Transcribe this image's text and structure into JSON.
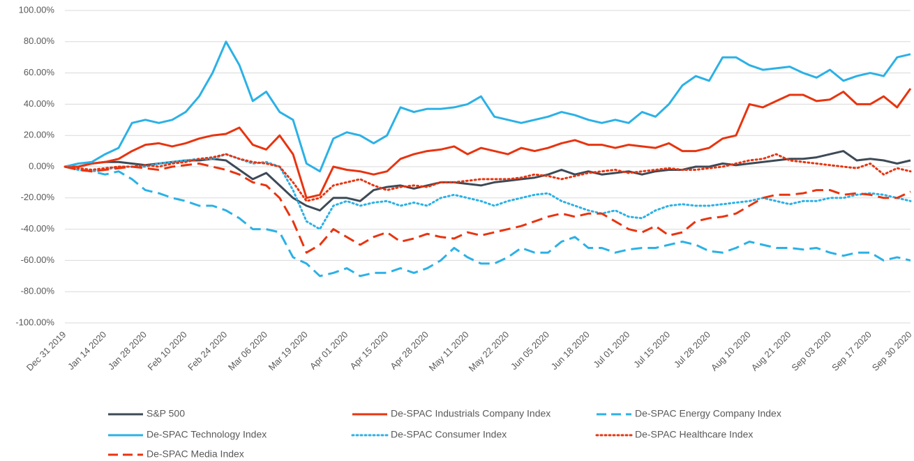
{
  "chart_data": {
    "type": "line",
    "categories": [
      "Dec 31 2019",
      null,
      null,
      "Jan 14 2020",
      null,
      null,
      "Jan 28 2020",
      null,
      null,
      "Feb 10 2020",
      null,
      null,
      "Feb 24 2020",
      null,
      null,
      "Mar 06 2020",
      null,
      null,
      "Mar 19 2020",
      null,
      null,
      "Apr 01 2020",
      null,
      null,
      "Apr 15 2020",
      null,
      null,
      "Apr 28 2020",
      null,
      null,
      "May 11 2020",
      null,
      null,
      "May 22 2020",
      null,
      null,
      "Jun 05 2020",
      null,
      null,
      "Jun 18 2020",
      null,
      null,
      "Jul 01 2020",
      null,
      null,
      "Jul 15 2020",
      null,
      null,
      "Jul 28 2020",
      null,
      null,
      "Aug 10 2020",
      null,
      null,
      "Aug 21 2020",
      null,
      null,
      "Sep 03 2020",
      null,
      null,
      "Sep 17 2020",
      null,
      null,
      "Sep 30 2020"
    ],
    "ylim": [
      -100,
      100
    ],
    "yticks": [
      {
        "value": -100,
        "label": "-100.00%"
      },
      {
        "value": -80,
        "label": "-80.00%"
      },
      {
        "value": -60,
        "label": "-60.00%"
      },
      {
        "value": -40,
        "label": "-40.00%"
      },
      {
        "value": -20,
        "label": "-20.00%"
      },
      {
        "value": 0,
        "label": "0.00%"
      },
      {
        "value": 20,
        "label": "20.00%"
      },
      {
        "value": 40,
        "label": "40.00%"
      },
      {
        "value": 60,
        "label": "60.00%"
      },
      {
        "value": 80,
        "label": "80.00%"
      },
      {
        "value": 100,
        "label": "100.00%"
      }
    ],
    "grid": true,
    "legend": "bottom",
    "series": [
      {
        "name": "S&P 500",
        "color": "#3d4a56",
        "linestyle": "solid",
        "values": [
          0,
          0,
          2,
          3,
          3,
          2,
          1,
          2,
          3,
          4,
          4,
          5,
          4,
          -2,
          -8,
          -4,
          -12,
          -20,
          -25,
          -28,
          -20,
          -20,
          -22,
          -15,
          -13,
          -12,
          -14,
          -12,
          -10,
          -10,
          -11,
          -12,
          -10,
          -9,
          -8,
          -7,
          -5,
          -2,
          -5,
          -3,
          -5,
          -4,
          -3,
          -5,
          -3,
          -2,
          -2,
          0,
          0,
          2,
          1,
          2,
          3,
          4,
          5,
          5,
          6,
          8,
          10,
          4,
          5,
          4,
          2,
          4
        ]
      },
      {
        "name": "De-SPAC Industrials Company Index",
        "color": "#e8340f",
        "linestyle": "solid",
        "values": [
          0,
          0,
          2,
          3,
          5,
          10,
          14,
          15,
          13,
          15,
          18,
          20,
          21,
          25,
          14,
          11,
          20,
          8,
          -20,
          -18,
          0,
          -2,
          -3,
          -5,
          -3,
          5,
          8,
          10,
          11,
          13,
          8,
          12,
          10,
          8,
          12,
          10,
          12,
          15,
          17,
          14,
          14,
          12,
          14,
          13,
          12,
          15,
          10,
          10,
          12,
          18,
          20,
          40,
          38,
          42,
          46,
          46,
          42,
          43,
          48,
          40,
          40,
          45,
          38,
          50
        ]
      },
      {
        "name": "De-SPAC Energy Company Index",
        "color": "#2bb1e6",
        "linestyle": "dashed",
        "values": [
          0,
          -2,
          -3,
          -5,
          -3,
          -8,
          -15,
          -17,
          -20,
          -22,
          -25,
          -25,
          -28,
          -33,
          -40,
          -40,
          -42,
          -58,
          -62,
          -70,
          -68,
          -65,
          -70,
          -68,
          -68,
          -65,
          -68,
          -65,
          -60,
          -52,
          -58,
          -62,
          -62,
          -58,
          -52,
          -55,
          -55,
          -48,
          -45,
          -52,
          -52,
          -55,
          -53,
          -52,
          -52,
          -50,
          -48,
          -50,
          -54,
          -55,
          -52,
          -48,
          -50,
          -52,
          -52,
          -53,
          -52,
          -55,
          -57,
          -55,
          -55,
          -60,
          -58,
          -60
        ]
      },
      {
        "name": "De-SPAC Technology Index",
        "color": "#2bb1e6",
        "linestyle": "solid",
        "values": [
          0,
          2,
          3,
          8,
          12,
          28,
          30,
          28,
          30,
          35,
          45,
          60,
          80,
          65,
          42,
          48,
          35,
          30,
          2,
          -3,
          18,
          22,
          20,
          15,
          20,
          38,
          35,
          37,
          37,
          38,
          40,
          45,
          32,
          30,
          28,
          30,
          32,
          35,
          33,
          30,
          28,
          30,
          28,
          35,
          32,
          40,
          52,
          58,
          55,
          70,
          70,
          65,
          62,
          63,
          64,
          60,
          57,
          62,
          55,
          58,
          60,
          58,
          70,
          72
        ]
      },
      {
        "name": "De-SPAC Consumer Index",
        "color": "#2bb1e6",
        "linestyle": "dotted",
        "values": [
          0,
          -2,
          -3,
          -2,
          0,
          0,
          0,
          2,
          3,
          4,
          5,
          5,
          8,
          5,
          2,
          3,
          0,
          -15,
          -35,
          -40,
          -25,
          -22,
          -25,
          -23,
          -22,
          -25,
          -23,
          -25,
          -20,
          -18,
          -20,
          -22,
          -25,
          -22,
          -20,
          -18,
          -17,
          -22,
          -25,
          -28,
          -30,
          -28,
          -32,
          -33,
          -28,
          -25,
          -24,
          -25,
          -25,
          -24,
          -23,
          -22,
          -20,
          -22,
          -24,
          -22,
          -22,
          -20,
          -20,
          -18,
          -17,
          -18,
          -20,
          -22
        ]
      },
      {
        "name": "De-SPAC Healthcare Index",
        "color": "#e8340f",
        "linestyle": "dotted",
        "values": [
          0,
          -1,
          -2,
          -1,
          0,
          0,
          1,
          0,
          2,
          3,
          5,
          6,
          8,
          5,
          3,
          2,
          0,
          -10,
          -22,
          -20,
          -12,
          -10,
          -8,
          -12,
          -15,
          -13,
          -12,
          -13,
          -10,
          -10,
          -9,
          -8,
          -8,
          -8,
          -7,
          -5,
          -6,
          -8,
          -6,
          -4,
          -3,
          -2,
          -4,
          -3,
          -2,
          -1,
          -2,
          -2,
          -1,
          0,
          2,
          4,
          5,
          8,
          4,
          3,
          2,
          1,
          0,
          -1,
          2,
          -5,
          -1,
          -3
        ]
      },
      {
        "name": "De-SPAC Media Index",
        "color": "#e8340f",
        "linestyle": "dashed",
        "values": [
          0,
          -2,
          -3,
          -2,
          -1,
          0,
          -1,
          -2,
          0,
          1,
          2,
          0,
          -2,
          -5,
          -10,
          -12,
          -20,
          -35,
          -55,
          -50,
          -40,
          -45,
          -50,
          -45,
          -42,
          -48,
          -46,
          -43,
          -45,
          -46,
          -42,
          -44,
          -42,
          -40,
          -38,
          -35,
          -32,
          -30,
          -32,
          -30,
          -30,
          -35,
          -40,
          -42,
          -38,
          -44,
          -42,
          -35,
          -33,
          -32,
          -30,
          -25,
          -20,
          -18,
          -18,
          -17,
          -15,
          -15,
          -18,
          -17,
          -18,
          -20,
          -20,
          -16
        ]
      }
    ]
  }
}
